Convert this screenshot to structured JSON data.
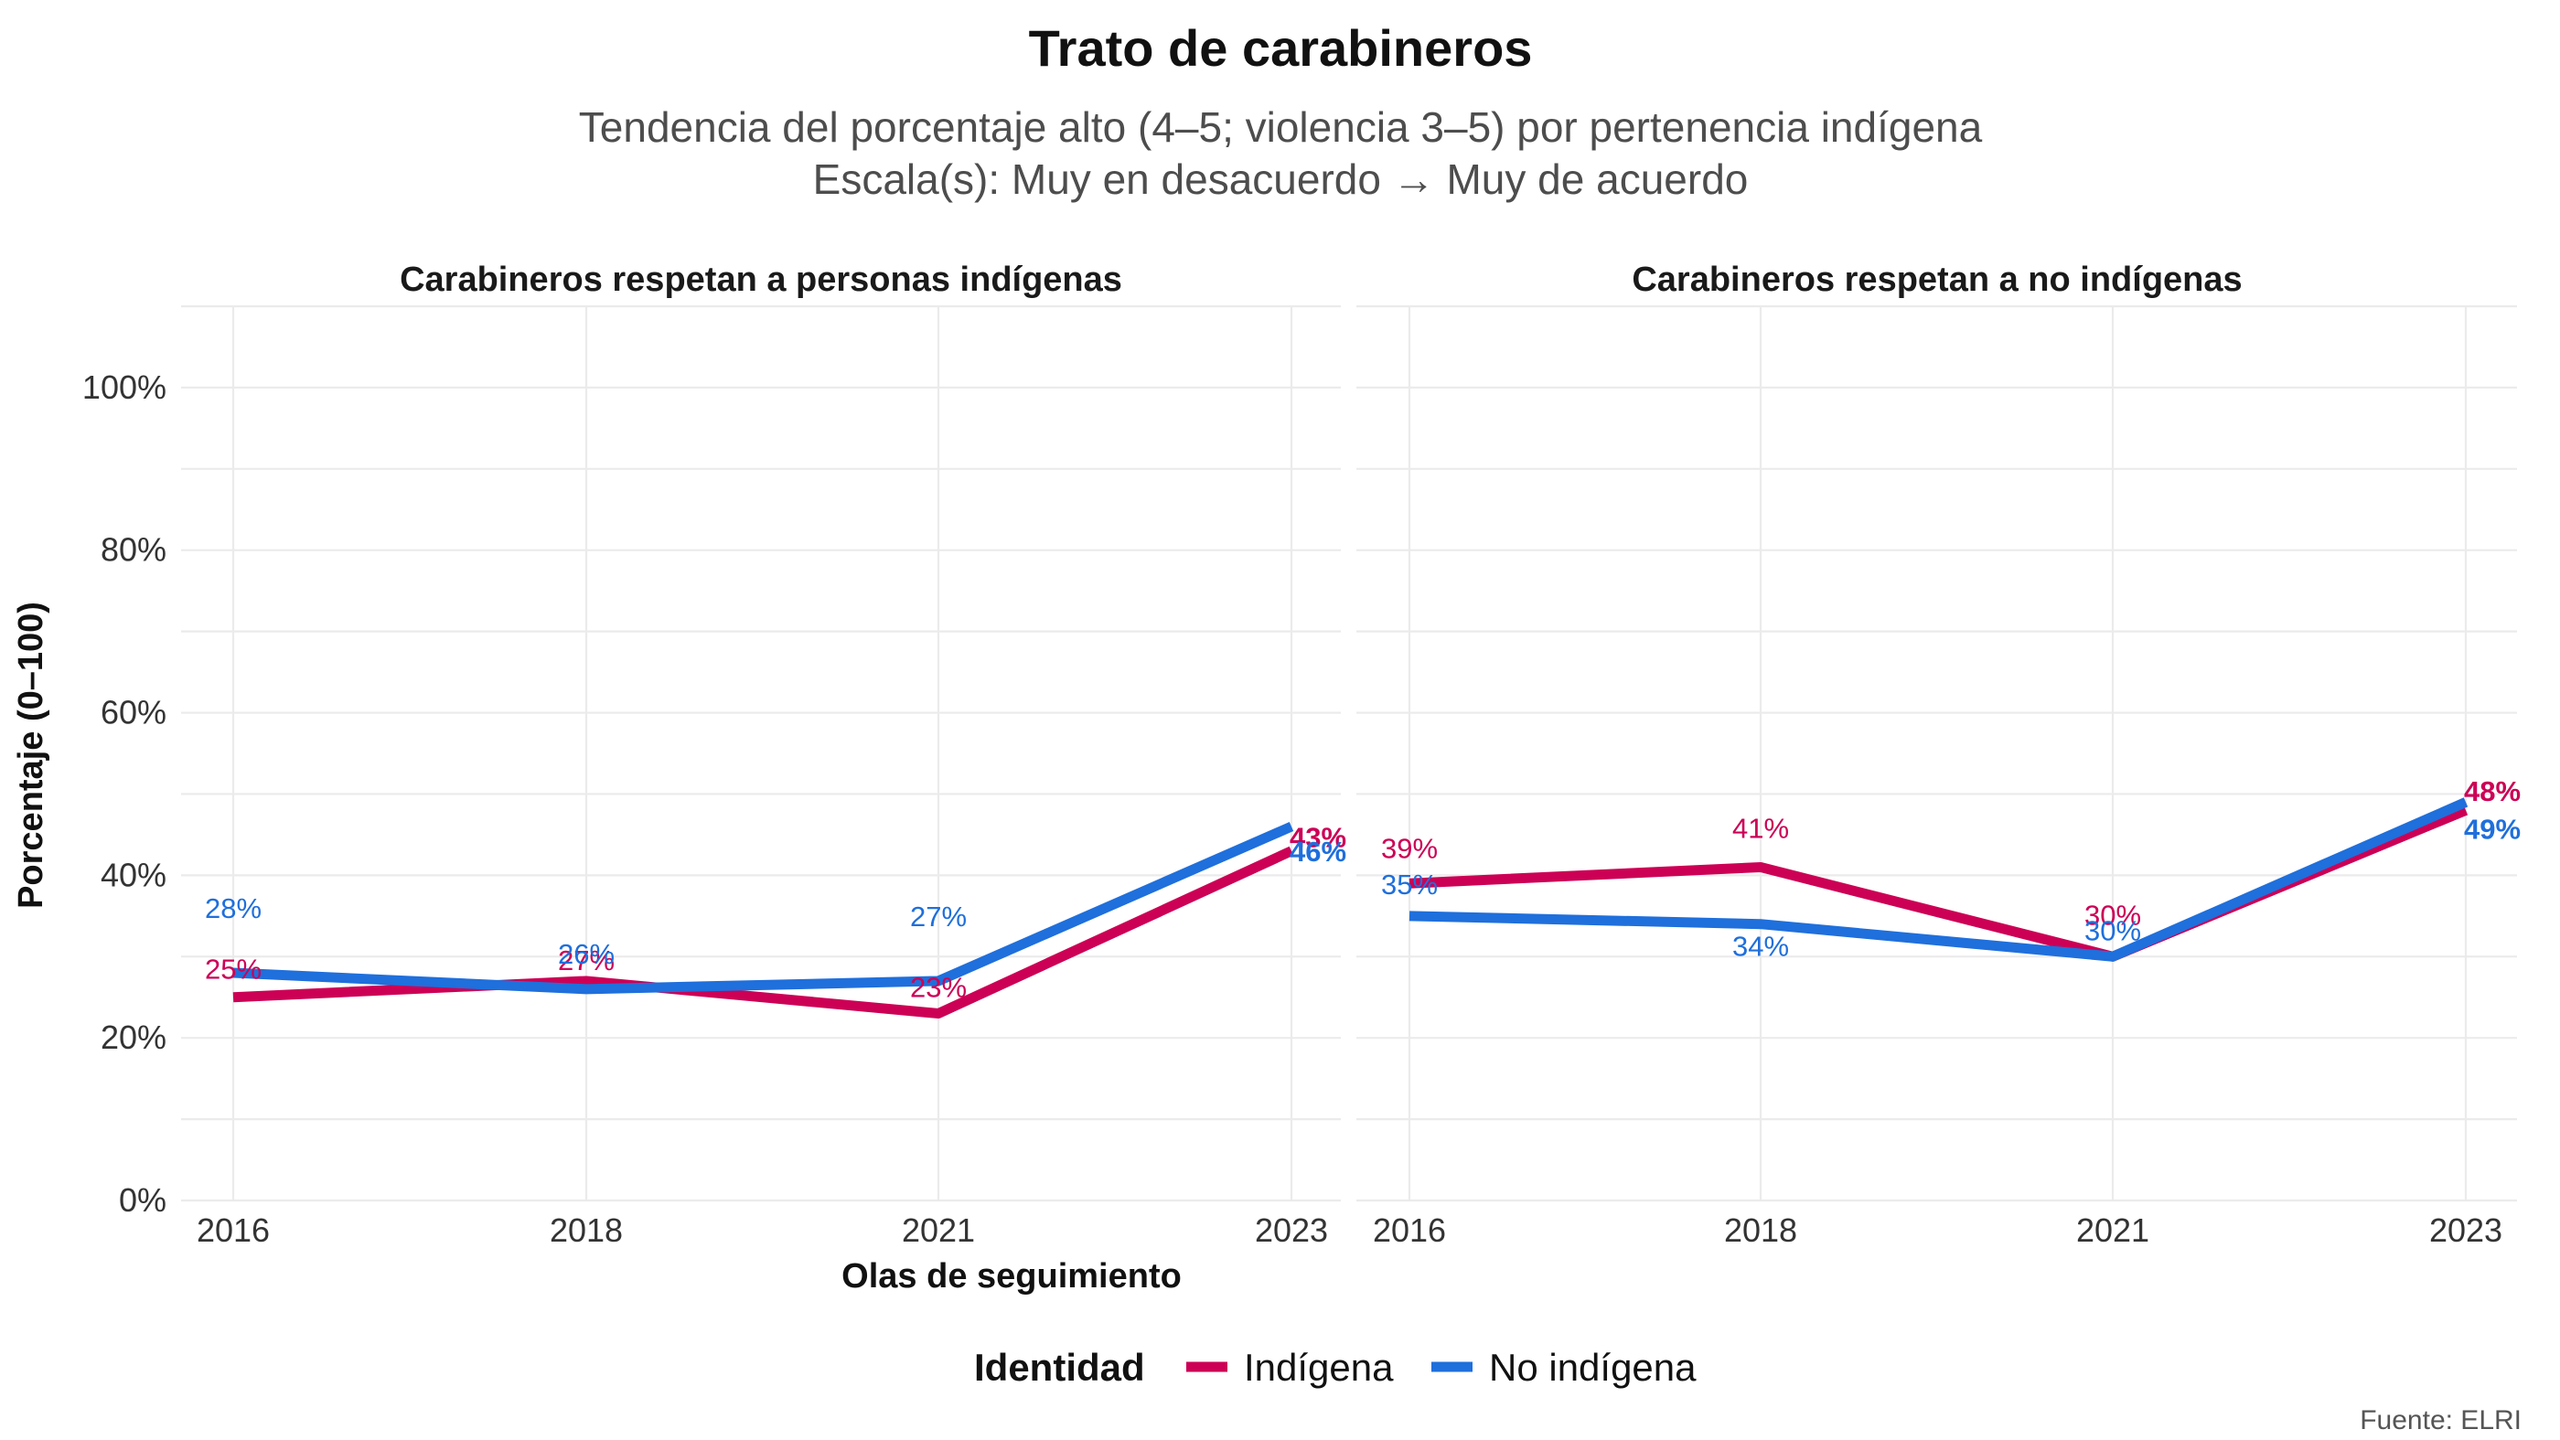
{
  "chart_data": {
    "type": "line",
    "title": "Trato de carabineros",
    "subtitle": [
      "Tendencia del porcentaje alto (4–5; violencia 3–5) por pertenencia indígena",
      "Escala(s): Muy en desacuerdo → Muy de acuerdo"
    ],
    "xlabel": "Olas de seguimiento",
    "ylabel": "Porcentaje (0–100)",
    "ylim": [
      0,
      110
    ],
    "y_ticks": [
      0,
      20,
      40,
      60,
      80,
      100
    ],
    "y_tick_labels": [
      "0%",
      "20%",
      "40%",
      "60%",
      "80%",
      "100%"
    ],
    "categories": [
      "2016",
      "2018",
      "2021",
      "2023"
    ],
    "grid": true,
    "legend": {
      "title": "Identidad",
      "position": "bottom",
      "entries": [
        {
          "name": "Indígena",
          "color": "#cc0055"
        },
        {
          "name": "No indígena",
          "color": "#1f6fdc"
        }
      ]
    },
    "caption": "Fuente: ELRI",
    "panels": [
      {
        "title": "Carabineros respetan a personas indígenas",
        "series": [
          {
            "name": "Indígena",
            "color": "#cc0055",
            "values": [
              25,
              27,
              23,
              43
            ],
            "labels": [
              "25%",
              "27%",
              "23%",
              "43%"
            ]
          },
          {
            "name": "No indígena",
            "color": "#1f6fdc",
            "values": [
              28,
              26,
              27,
              46
            ],
            "labels": [
              "28%",
              "26%",
              "27%",
              "46%"
            ]
          }
        ]
      },
      {
        "title": "Carabineros respetan a no indígenas",
        "series": [
          {
            "name": "Indígena",
            "color": "#cc0055",
            "values": [
              39,
              41,
              30,
              48
            ],
            "labels": [
              "39%",
              "41%",
              "30%",
              "48%"
            ]
          },
          {
            "name": "No indígena",
            "color": "#1f6fdc",
            "values": [
              35,
              34,
              30,
              49
            ],
            "labels": [
              "35%",
              "34%",
              "30%",
              "49%"
            ]
          }
        ]
      }
    ]
  }
}
